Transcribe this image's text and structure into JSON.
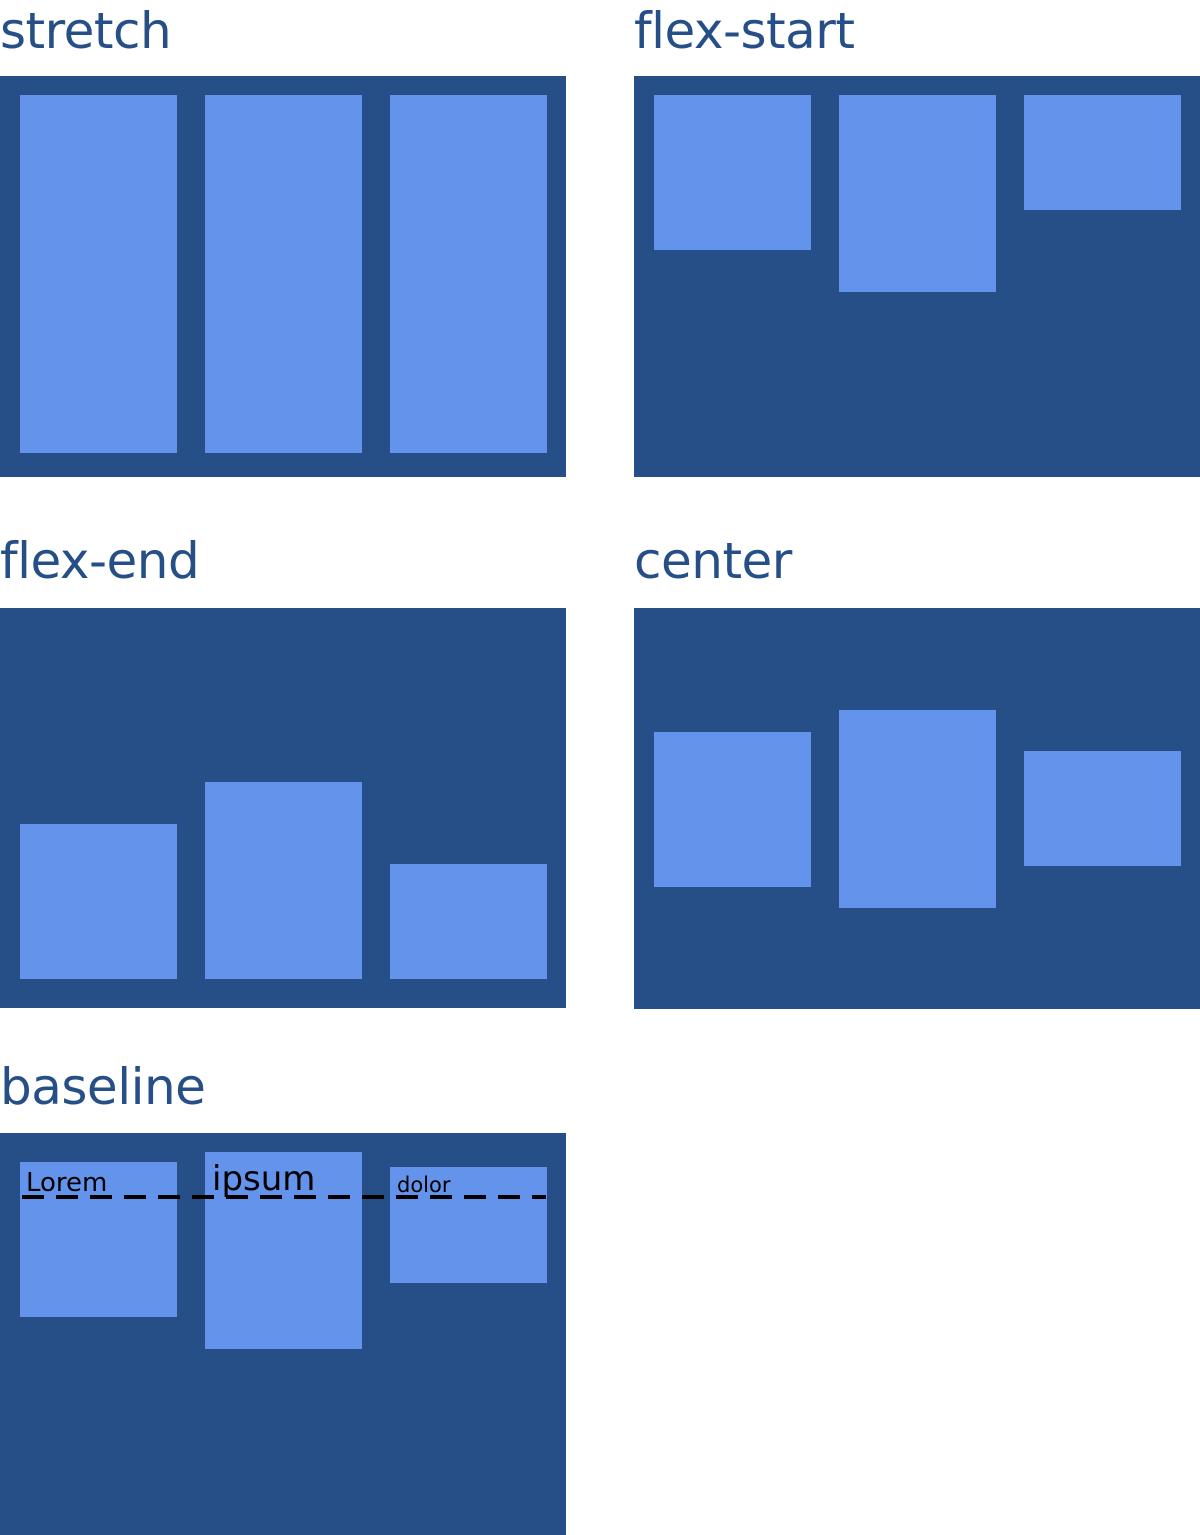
{
  "colors": {
    "label_text": "#264f87",
    "panel": "#264f87",
    "box": "#6393ea",
    "baseline_text": "#000000",
    "baseline_dash": "#000000"
  },
  "panels": {
    "stretch": {
      "label": "stretch"
    },
    "flex_start": {
      "label": "flex-start"
    },
    "flex_end": {
      "label": "flex-end"
    },
    "center": {
      "label": "center"
    },
    "baseline": {
      "label": "baseline",
      "words": [
        "Lorem",
        "ipsum",
        "dolor"
      ]
    }
  }
}
